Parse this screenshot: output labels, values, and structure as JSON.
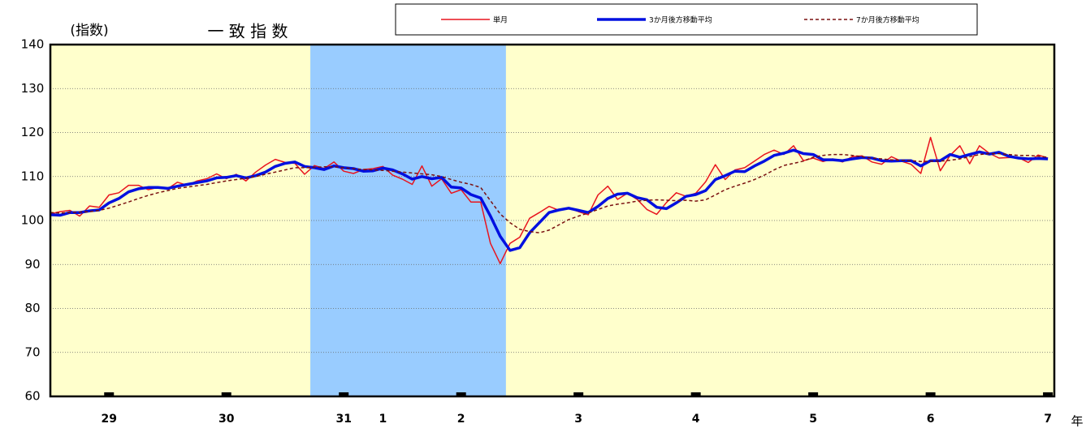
{
  "chart_data": {
    "type": "line",
    "title": "一 致 指 数",
    "y_label": "(指数)",
    "x_unit": "年",
    "categories": [
      null,
      null,
      null,
      null,
      null,
      null,
      "29",
      null,
      null,
      null,
      null,
      null,
      null,
      null,
      null,
      null,
      null,
      null,
      "30",
      null,
      null,
      null,
      null,
      null,
      null,
      null,
      null,
      null,
      null,
      null,
      "31",
      null,
      null,
      null,
      "1",
      null,
      null,
      null,
      null,
      null,
      null,
      null,
      "2",
      null,
      null,
      null,
      null,
      null,
      null,
      null,
      null,
      null,
      null,
      null,
      "3",
      null,
      null,
      null,
      null,
      null,
      null,
      null,
      null,
      null,
      null,
      null,
      "4",
      null,
      null,
      null,
      null,
      null,
      null,
      null,
      null,
      null,
      null,
      null,
      "5",
      null,
      null,
      null,
      null,
      null,
      null,
      null,
      null,
      null,
      null,
      null,
      "6",
      null,
      null,
      null,
      null,
      null,
      null,
      null,
      null,
      null,
      null,
      null,
      "7"
    ],
    "year_ticks": [
      6,
      18,
      30,
      42,
      54,
      66,
      78,
      90,
      102
    ],
    "shaded_period": {
      "start": 27,
      "end": 46,
      "color": "#99ccff"
    },
    "background": "#ffffcc",
    "ylim": [
      60,
      140
    ],
    "yticks": [
      60,
      70,
      80,
      90,
      100,
      110,
      120,
      130,
      140
    ],
    "grid": true,
    "series": [
      {
        "name": "単月",
        "color": "#e8141e",
        "width": 1.5,
        "dash": null,
        "values": [
          101.5,
          102,
          102.3,
          101,
          103.3,
          103,
          105.8,
          106.3,
          108,
          108,
          107,
          107.5,
          107.2,
          108.7,
          108,
          109,
          109.5,
          110.6,
          109.5,
          110.5,
          109,
          111,
          112.6,
          113.9,
          113.2,
          113,
          110.5,
          112.5,
          111.8,
          113.3,
          111.2,
          110.7,
          111.6,
          111.8,
          112.3,
          110.3,
          109.4,
          108.2,
          112.4,
          107.8,
          109.5,
          106.2,
          107,
          104.2,
          104.2,
          94.8,
          90.2,
          94.8,
          96.2,
          100.5,
          101.8,
          103.2,
          102.3,
          102.8,
          102,
          101.3,
          105.8,
          107.8,
          104.8,
          106.2,
          104.8,
          102.5,
          101.4,
          104.1,
          106.3,
          105.5,
          106.2,
          108.8,
          112.7,
          109.3,
          111.5,
          112,
          113.5,
          115,
          116,
          115,
          117,
          113.6,
          114.2,
          113.4,
          114,
          113.3,
          114.5,
          114.7,
          113.3,
          112.8,
          114.5,
          113.5,
          112.8,
          110.7,
          118.9,
          111.3,
          114.8,
          117,
          112.9,
          117,
          115.3,
          114.2,
          114.3,
          114.3,
          113.2,
          114.9,
          114.2
        ]
      },
      {
        "name": "3か月後方移動平均",
        "color": "#0010e0",
        "width": 3.5,
        "dash": null,
        "values": [
          101.3,
          101.2,
          101.8,
          101.8,
          102.2,
          102.4,
          104,
          105,
          106.5,
          107.2,
          107.5,
          107.5,
          107.3,
          107.8,
          108.2,
          108.6,
          109,
          109.7,
          109.8,
          110.2,
          109.7,
          110.2,
          111,
          112.3,
          113,
          113.3,
          112.3,
          112,
          111.6,
          112.4,
          112,
          111.8,
          111.2,
          111.3,
          111.9,
          111.5,
          110.6,
          109.4,
          110,
          109.5,
          109.8,
          107.6,
          107.4,
          105.9,
          105.1,
          101,
          96.4,
          93.2,
          93.8,
          97.2,
          99.5,
          101.8,
          102.4,
          102.8,
          102.3,
          101.8,
          103.2,
          105,
          106,
          106.2,
          105.2,
          104.7,
          103,
          102.7,
          104,
          105.5,
          105.9,
          106.8,
          109.3,
          110.2,
          111.2,
          111.1,
          112.4,
          113.5,
          114.8,
          115.3,
          116,
          115.2,
          115,
          113.8,
          113.8,
          113.6,
          114,
          114.3,
          114.2,
          113.6,
          113.5,
          113.6,
          113.6,
          112.4,
          113.6,
          113.6,
          115,
          114.4,
          115,
          115.6,
          115.1,
          115.5,
          114.6,
          114.2,
          114,
          114.1,
          114
        ]
      },
      {
        "name": "7か月後方移動平均",
        "color": "#7a1010",
        "width": 1.5,
        "dash": "4 3",
        "values": [
          101.8,
          101.7,
          101.8,
          101.9,
          102,
          102.3,
          102.8,
          103.5,
          104.2,
          105,
          105.7,
          106.3,
          106.8,
          107.3,
          107.6,
          107.9,
          108.2,
          108.6,
          109,
          109.3,
          109.6,
          110,
          110.5,
          111,
          111.5,
          112,
          112,
          112.1,
          112.2,
          112.2,
          112,
          111.8,
          111.6,
          111.5,
          111.4,
          111.2,
          111,
          110.8,
          110.6,
          110.4,
          110,
          109.3,
          108.7,
          108.2,
          107.5,
          104.5,
          101.5,
          99.5,
          98,
          97.5,
          97.2,
          97.8,
          99,
          100.2,
          101,
          101.7,
          102.5,
          103.3,
          103.7,
          104,
          104.4,
          104.6,
          104.7,
          104.6,
          104.5,
          104.6,
          104.4,
          104.7,
          105.8,
          107,
          107.8,
          108.5,
          109.3,
          110.3,
          111.5,
          112.5,
          113,
          113.5,
          114.4,
          114.8,
          115,
          115,
          114.8,
          114.5,
          114.2,
          114,
          113.8,
          113.7,
          113.6,
          113.4,
          113.5,
          113.5,
          113.7,
          114,
          114.5,
          115,
          115.2,
          115.2,
          115,
          114.8,
          114.8,
          114.6,
          114.4
        ]
      }
    ]
  }
}
